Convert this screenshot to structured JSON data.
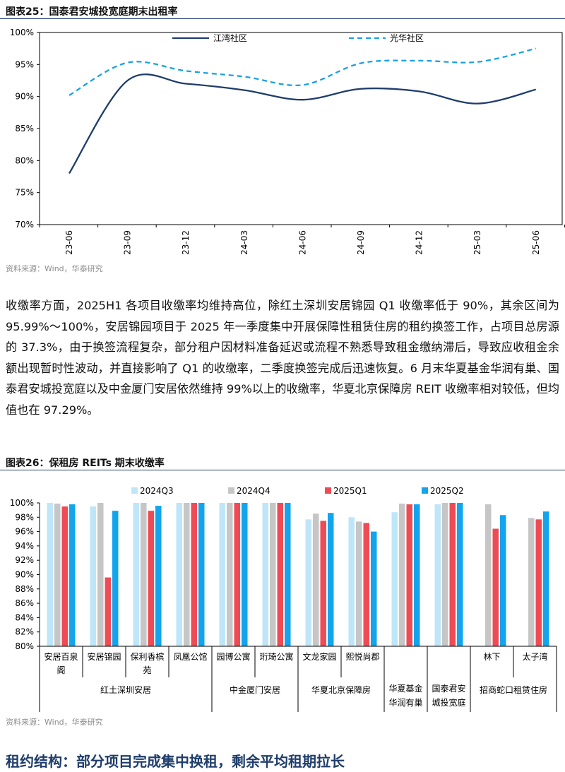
{
  "figure1": {
    "label": "图表25：",
    "title": "国泰君安城投宽庭期末出租率",
    "source": "资料来源：Wind，华泰研究"
  },
  "figure2": {
    "label": "图表26：",
    "title": "保租房 REITs 期末收缴率",
    "source": "资料来源：Wind，华泰研究"
  },
  "paragraph": "收缴率方面，2025H1 各项目收缴率均维持高位，除红土深圳安居锦园 Q1 收缴率低于 90%，其余区间为 95.99%～100%，安居锦园项目于 2025 年一季度集中开展保障性租赁住房的租约换签工作，占项目总房源的 37.3%，由于换签流程复杂，部分租户因材料准备延迟或流程不熟悉导致租金缴纳滞后，导致应收租金余额出现暂时性波动，并直接影响了 Q1 的收缴率，二季度换签完成后迅速恢复。6 月末华夏基金华润有巢、国泰君安城投宽庭以及中金厦门安居依然维持 99%以上的收缴率，华夏北京保障房 REIT 收缴率相对较低，但均值也在 97.29%。",
  "heading": "租约结构：部分项目完成集中换租，剩余平均租期拉长",
  "chart_data": [
    {
      "type": "line",
      "title": "国泰君安城投宽庭期末出租率",
      "x": [
        "23-06",
        "23-09",
        "23-12",
        "24-03",
        "24-06",
        "24-09",
        "24-12",
        "25-03",
        "25-06"
      ],
      "ylim": [
        70,
        100
      ],
      "yticks": [
        "70%",
        "75%",
        "80%",
        "85%",
        "90%",
        "95%",
        "100%"
      ],
      "legend_position": "top",
      "series": [
        {
          "name": "江湾社区",
          "style": "solid",
          "color": "#1f3d6b",
          "values": [
            78.0,
            92.5,
            92.0,
            91.0,
            89.5,
            91.2,
            90.8,
            88.9,
            91.1
          ]
        },
        {
          "name": "光华社区",
          "style": "dashed",
          "color": "#1ba1e2",
          "values": [
            90.2,
            95.3,
            94.0,
            93.1,
            91.8,
            95.2,
            95.6,
            95.4,
            97.5
          ]
        }
      ]
    },
    {
      "type": "bar",
      "title": "保租房 REITs 期末收缴率",
      "ylim": [
        80,
        100
      ],
      "yticks": [
        "80%",
        "82%",
        "84%",
        "86%",
        "88%",
        "90%",
        "92%",
        "94%",
        "96%",
        "98%",
        "100%"
      ],
      "legend_position": "top",
      "categories": [
        {
          "label": [
            "安居百泉",
            "阁"
          ],
          "values": [
            100.0,
            99.9,
            99.5,
            99.8
          ]
        },
        {
          "label": [
            "安居锦园"
          ],
          "values": [
            99.5,
            100.0,
            89.6,
            98.9
          ]
        },
        {
          "label": [
            "保利香槟",
            "苑"
          ],
          "values": [
            100.0,
            100.0,
            98.9,
            99.6
          ]
        },
        {
          "label": [
            "凤凰公馆"
          ],
          "values": [
            100.0,
            100.0,
            100.0,
            100.0
          ]
        },
        {
          "label": [
            "园博公寓"
          ],
          "values": [
            100.0,
            100.0,
            100.0,
            100.0
          ]
        },
        {
          "label": [
            "珩琦公寓"
          ],
          "values": [
            100.0,
            100.0,
            100.0,
            100.0
          ]
        },
        {
          "label": [
            "文龙家园"
          ],
          "values": [
            97.7,
            98.5,
            97.5,
            98.6
          ]
        },
        {
          "label": [
            "熙悦尚郡"
          ],
          "values": [
            98.0,
            97.4,
            97.2,
            96.0
          ]
        },
        {
          "label": [],
          "values": [
            98.7,
            99.9,
            99.8,
            99.8
          ]
        },
        {
          "label": [],
          "values": [
            99.8,
            100.0,
            100.0,
            100.0
          ]
        },
        {
          "label": [
            "林下"
          ],
          "values": [
            null,
            99.8,
            96.4,
            98.3
          ]
        },
        {
          "label": [
            "太子湾"
          ],
          "values": [
            null,
            97.9,
            97.7,
            98.8
          ]
        }
      ],
      "groups": [
        {
          "label": [
            "红土深圳安居"
          ],
          "span": 4
        },
        {
          "label": [
            "中金厦门安居"
          ],
          "span": 2
        },
        {
          "label": [
            "华夏北京保障房"
          ],
          "span": 2
        },
        {
          "label": [
            "华夏基金",
            "华润有巢"
          ],
          "span": 1
        },
        {
          "label": [
            "国泰君安",
            "城投宽庭"
          ],
          "span": 1
        },
        {
          "label": [
            "招商蛇口租赁住房"
          ],
          "span": 2
        }
      ],
      "series": [
        {
          "name": "2024Q3",
          "color": "#bfe6f8"
        },
        {
          "name": "2024Q4",
          "color": "#c6c6c6"
        },
        {
          "name": "2025Q1",
          "color": "#ef4b55"
        },
        {
          "name": "2025Q2",
          "color": "#12a5ee"
        }
      ]
    }
  ]
}
